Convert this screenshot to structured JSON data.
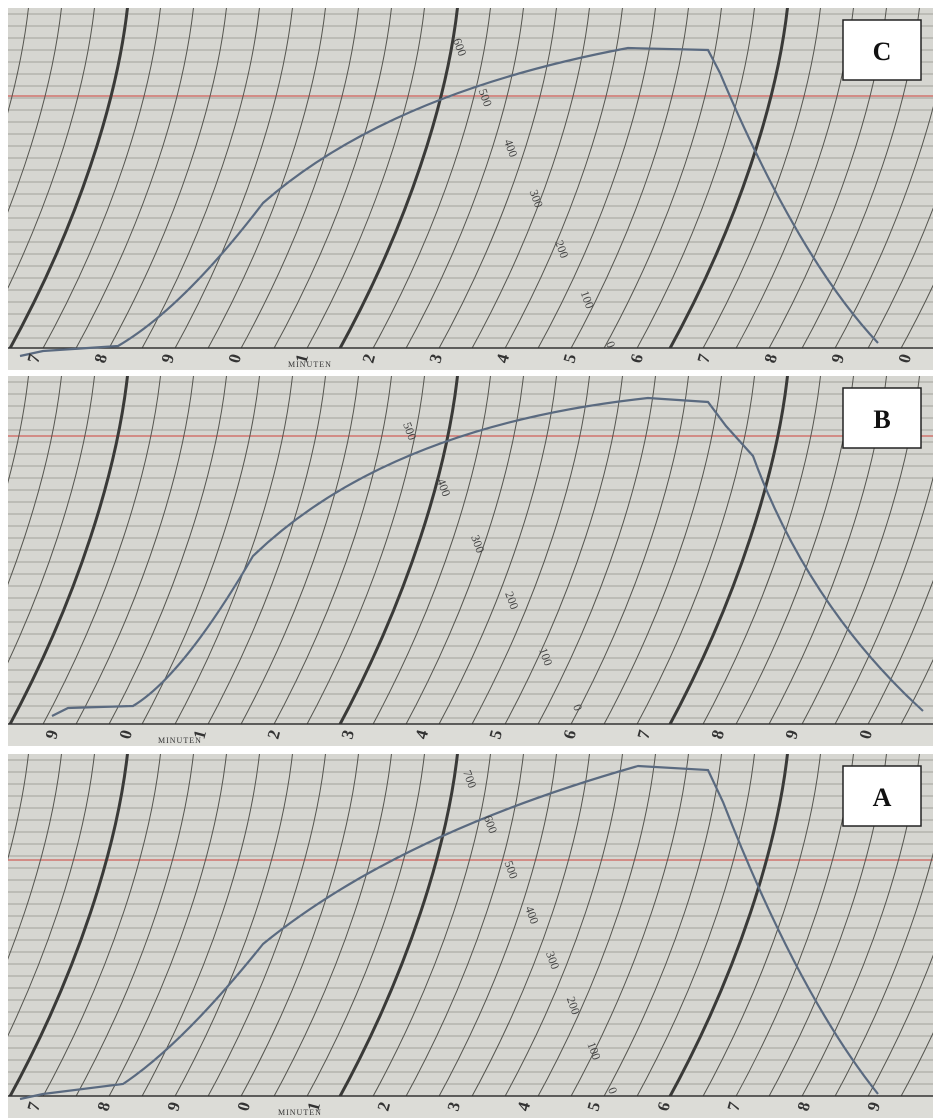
{
  "panels": [
    {
      "label": "C",
      "minutes": [
        "7",
        "8",
        "9",
        "0",
        "1",
        "2",
        "3",
        "4",
        "5",
        "6",
        "7",
        "8",
        "9",
        "0"
      ],
      "unit": "MINUTEN",
      "scale": [
        "600",
        "500",
        "400",
        "300",
        "200",
        "100",
        "0"
      ]
    },
    {
      "label": "B",
      "minutes": [
        "9",
        "0",
        "1",
        "2",
        "3",
        "4",
        "5",
        "6",
        "7",
        "8",
        "9",
        "0"
      ],
      "unit": "MINUTEN",
      "scale": [
        "500",
        "400",
        "300",
        "200",
        "100",
        "0"
      ]
    },
    {
      "label": "A",
      "minutes": [
        "7",
        "8",
        "9",
        "0",
        "1",
        "2",
        "3",
        "4",
        "5",
        "6",
        "7",
        "8",
        "9"
      ],
      "unit": "MINUTEN",
      "scale": [
        "700",
        "600",
        "500",
        "400",
        "300",
        "200",
        "100",
        "0"
      ]
    }
  ]
}
